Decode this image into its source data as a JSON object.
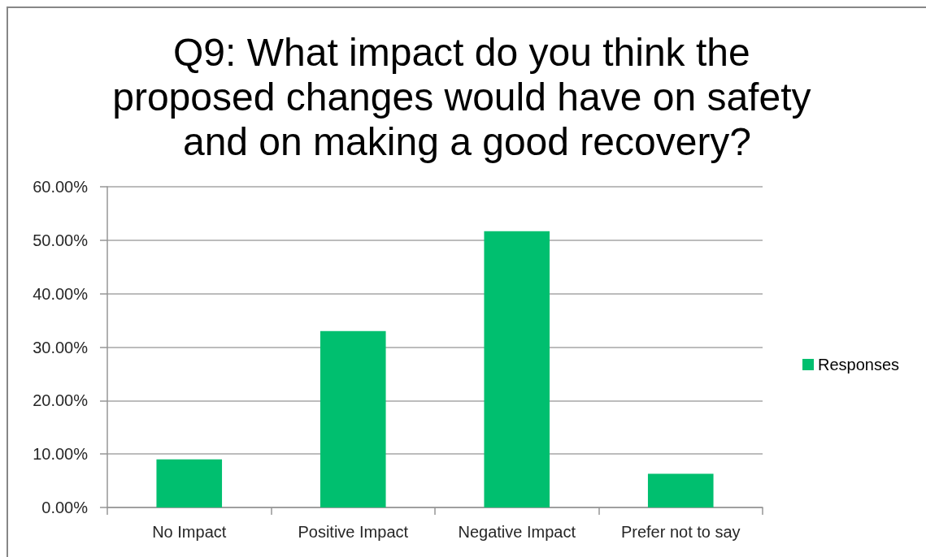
{
  "chart_data": {
    "type": "bar",
    "title": "Q9: What impact do you think the proposed changes would have on safety and on making a good recovery?",
    "categories": [
      "No Impact",
      "Positive Impact",
      "Negative Impact",
      "Prefer not to say"
    ],
    "series": [
      {
        "name": "Responses",
        "color": "#00bf6f",
        "values": [
          9.0,
          33.0,
          51.7,
          6.3
        ]
      }
    ],
    "ylim": [
      0,
      60
    ],
    "yticks": [
      {
        "value": 0,
        "label": "0.00%"
      },
      {
        "value": 10,
        "label": "10.00%"
      },
      {
        "value": 20,
        "label": "20.00%"
      },
      {
        "value": 30,
        "label": "30.00%"
      },
      {
        "value": 40,
        "label": "40.00%"
      },
      {
        "value": 50,
        "label": "50.00%"
      },
      {
        "value": 60,
        "label": "60.00%"
      }
    ],
    "grid": "y",
    "legend": "right"
  }
}
